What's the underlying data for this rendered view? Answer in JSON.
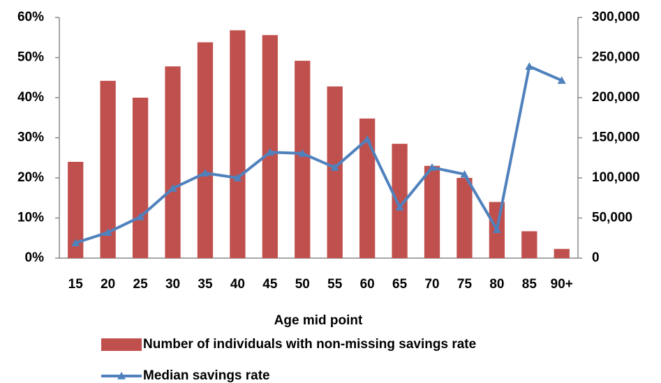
{
  "chart_data": {
    "type": "bar-line",
    "x_label": "Age mid point",
    "categories": [
      "15",
      "20",
      "25",
      "30",
      "35",
      "40",
      "45",
      "50",
      "55",
      "60",
      "65",
      "70",
      "75",
      "80",
      "85",
      "90+"
    ],
    "series": [
      {
        "name": "Number of individuals with non-missing savings rate",
        "type": "bar",
        "axis": "y2",
        "color": "#c0504d",
        "values": [
          120000,
          221000,
          200000,
          239000,
          269000,
          284000,
          278000,
          246000,
          214000,
          174000,
          142500,
          115000,
          100000,
          70000,
          33500,
          11500
        ]
      },
      {
        "name": "Median savings rate",
        "type": "line",
        "axis": "y",
        "color": "#4f81bd",
        "values": [
          3.8,
          6.4,
          10.3,
          17.4,
          21.2,
          20,
          26.4,
          26.1,
          22.6,
          29.6,
          12.7,
          22.6,
          20.9,
          7.1,
          47.8,
          44.3
        ]
      }
    ],
    "ylim": [
      0,
      60
    ],
    "yticks": [
      {
        "value": 0,
        "label": "0%"
      },
      {
        "value": 10,
        "label": "10%"
      },
      {
        "value": 20,
        "label": "20%"
      },
      {
        "value": 30,
        "label": "30%"
      },
      {
        "value": 40,
        "label": "40%"
      },
      {
        "value": 50,
        "label": "50%"
      },
      {
        "value": 60,
        "label": "60%"
      }
    ],
    "y2lim": [
      0,
      300000
    ],
    "y2ticks": [
      0,
      {
        "value": 50000,
        "label": "50,000"
      },
      {
        "value": 100000,
        "label": "100,000"
      },
      {
        "value": 150000,
        "label": "150,000"
      },
      {
        "value": 200000,
        "label": "200,000"
      },
      {
        "value": 250000,
        "label": "250,000"
      },
      {
        "value": 300000,
        "label": "300,000"
      }
    ],
    "grid": false
  }
}
